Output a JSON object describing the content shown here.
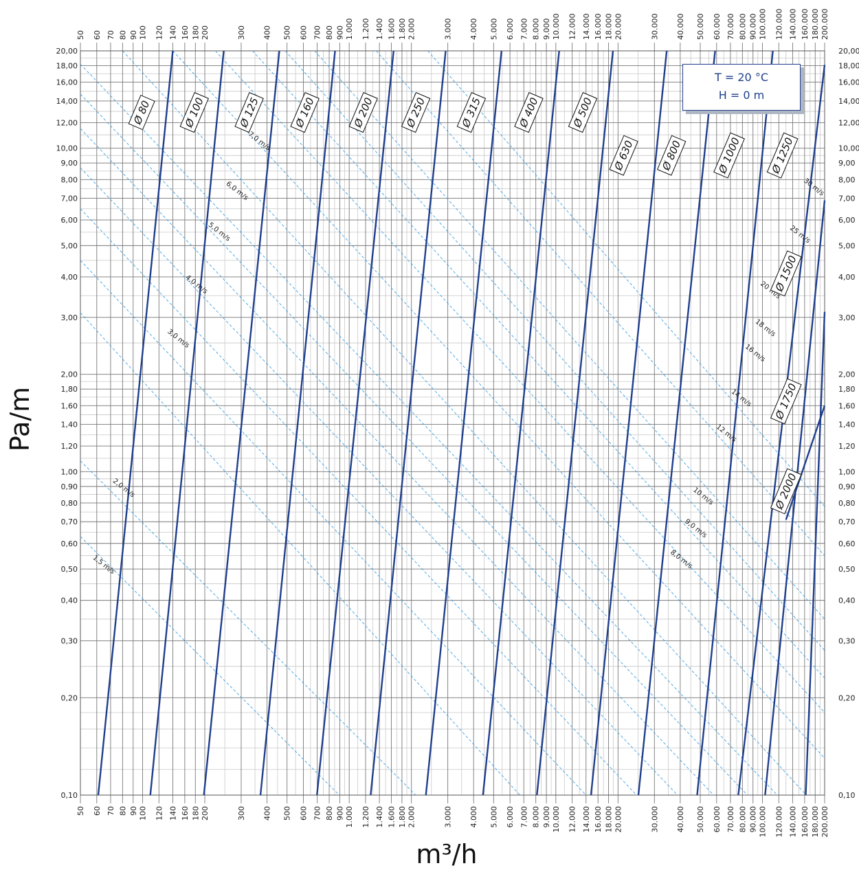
{
  "chart_data": {
    "type": "line",
    "title": "",
    "xlabel": "m³/h",
    "ylabel": "Pa/m",
    "x_scale": "log",
    "y_scale": "log",
    "xlim": [
      50,
      200000
    ],
    "ylim": [
      0.1,
      20
    ],
    "grid": true,
    "x_ticks": [
      50,
      60,
      70,
      80,
      90,
      100,
      120,
      140,
      160,
      180,
      200,
      300,
      400,
      500,
      600,
      700,
      800,
      900,
      1000,
      1200,
      1400,
      1600,
      1800,
      2000,
      3000,
      4000,
      5000,
      6000,
      7000,
      8000,
      9000,
      10000,
      12000,
      14000,
      16000,
      18000,
      20000,
      30000,
      40000,
      50000,
      60000,
      70000,
      80000,
      90000,
      100000,
      120000,
      140000,
      160000,
      180000,
      200000
    ],
    "x_tick_labels": [
      "50",
      "60",
      "70",
      "80",
      "90",
      "100",
      "120",
      "140",
      "160",
      "180",
      "200",
      "300",
      "400",
      "500",
      "600",
      "700",
      "800",
      "900",
      "1.000",
      "1.200",
      "1.400",
      "1.600",
      "1.800",
      "2.000",
      "3.000",
      "4.000",
      "5.000",
      "6.000",
      "7.000",
      "8.000",
      "9.000",
      "10.000",
      "12.000",
      "14.000",
      "16.000",
      "18.000",
      "20.000",
      "30.000",
      "40.000",
      "50.000",
      "60.000",
      "70.000",
      "80.000",
      "90.000",
      "100.000",
      "120.000",
      "140.000",
      "160.000",
      "180.000",
      "200.000"
    ],
    "y_ticks": [
      0.1,
      0.2,
      0.3,
      0.4,
      0.5,
      0.6,
      0.7,
      0.8,
      0.9,
      1,
      1.2,
      1.4,
      1.6,
      1.8,
      2,
      3,
      4,
      5,
      6,
      7,
      8,
      9,
      10,
      12,
      14,
      16,
      18,
      20
    ],
    "y_tick_labels": [
      "0,10",
      "0,20",
      "0,30",
      "0,40",
      "0,50",
      "0,60",
      "0,70",
      "0,80",
      "0,90",
      "1,00",
      "1,20",
      "1,40",
      "1,60",
      "1,80",
      "2,00",
      "3,00",
      "4,00",
      "5,00",
      "6,00",
      "7,00",
      "8,00",
      "9,00",
      "10,00",
      "12,00",
      "14,00",
      "16,00",
      "18,00",
      "20,00"
    ],
    "diameter_series": [
      {
        "name": "Ø 80",
        "points": [
          [
            61,
            0.1
          ],
          [
            140,
            20
          ]
        ]
      },
      {
        "name": "Ø 100",
        "points": [
          [
            109,
            0.1
          ],
          [
            247,
            20
          ]
        ]
      },
      {
        "name": "Ø 125",
        "points": [
          [
            198,
            0.1
          ],
          [
            459,
            20
          ]
        ]
      },
      {
        "name": "Ø 160",
        "points": [
          [
            372,
            0.1
          ],
          [
            854,
            20
          ]
        ]
      },
      {
        "name": "Ø 200",
        "points": [
          [
            698,
            0.1
          ],
          [
            1640,
            20
          ]
        ]
      },
      {
        "name": "Ø 250",
        "points": [
          [
            1270,
            0.1
          ],
          [
            2930,
            20
          ]
        ]
      },
      {
        "name": "Ø 315",
        "points": [
          [
            2350,
            0.1
          ],
          [
            5460,
            20
          ]
        ]
      },
      {
        "name": "Ø 400",
        "points": [
          [
            4440,
            0.1
          ],
          [
            10380,
            20
          ]
        ]
      },
      {
        "name": "Ø 500",
        "points": [
          [
            8100,
            0.1
          ],
          [
            18900,
            20
          ]
        ]
      },
      {
        "name": "Ø 630",
        "points": [
          [
            14800,
            0.1
          ],
          [
            34400,
            20
          ]
        ]
      },
      {
        "name": "Ø 800",
        "points": [
          [
            25100,
            0.1
          ],
          [
            59000,
            20
          ]
        ]
      },
      {
        "name": "Ø 1000",
        "points": [
          [
            48300,
            0.1
          ],
          [
            112300,
            20
          ]
        ]
      },
      {
        "name": "Ø 1250",
        "points": [
          [
            76400,
            0.1
          ],
          [
            200000,
            18.1
          ]
        ]
      },
      {
        "name": "Ø 1500",
        "points": [
          [
            103000,
            0.1
          ],
          [
            200000,
            6.9
          ]
        ]
      },
      {
        "name": "Ø 1750",
        "points": [
          [
            162000,
            0.1
          ],
          [
            200000,
            3.12
          ]
        ]
      },
      {
        "name": "Ø 2000",
        "points": [
          [
            200000,
            1.6
          ],
          [
            130000,
            0.71
          ]
        ]
      }
    ],
    "velocity_series": [
      {
        "name": "1,5 m/s",
        "points": [
          [
            50,
            0.63
          ],
          [
            895,
            0.1
          ]
        ]
      },
      {
        "name": "2,0 m/s",
        "points": [
          [
            50,
            1.08
          ],
          [
            2100,
            0.1
          ]
        ]
      },
      {
        "name": "3,0 m/s",
        "points": [
          [
            50,
            3.1
          ],
          [
            6700,
            0.1
          ]
        ]
      },
      {
        "name": "4,0 m/s",
        "points": [
          [
            50,
            4.5
          ],
          [
            14000,
            0.1
          ]
        ]
      },
      {
        "name": "5,0 m/s",
        "points": [
          [
            50,
            6.5
          ],
          [
            24600,
            0.1
          ]
        ]
      },
      {
        "name": "6,0 m/s",
        "points": [
          [
            50,
            8.7
          ],
          [
            38800,
            0.1
          ]
        ]
      },
      {
        "name": "7,0 m/s",
        "points": [
          [
            50,
            11.5
          ],
          [
            58000,
            0.1
          ]
        ]
      },
      {
        "name": "8,0 m/s",
        "points": [
          [
            50,
            14.7
          ],
          [
            84600,
            0.1
          ]
        ]
      },
      {
        "name": "9,0 m/s",
        "points": [
          [
            50,
            18.2
          ],
          [
            118000,
            0.1
          ]
        ]
      },
      {
        "name": "10 m/s",
        "points": [
          [
            80,
            20
          ],
          [
            163000,
            0.1
          ]
        ]
      },
      {
        "name": "12 m/s",
        "points": [
          [
            140,
            20
          ],
          [
            200000,
            0.13
          ]
        ]
      },
      {
        "name": "14 m/s",
        "points": [
          [
            225,
            20
          ],
          [
            200000,
            0.18
          ]
        ]
      },
      {
        "name": "16 m/s",
        "points": [
          [
            340,
            20
          ],
          [
            200000,
            0.23
          ]
        ]
      },
      {
        "name": "18 m/s",
        "points": [
          [
            490,
            20
          ],
          [
            200000,
            0.28
          ]
        ]
      },
      {
        "name": "20 m/s",
        "points": [
          [
            680,
            20
          ],
          [
            200000,
            0.35
          ]
        ]
      },
      {
        "name": "25 m/s",
        "points": [
          [
            1350,
            20
          ],
          [
            200000,
            0.55
          ]
        ]
      },
      {
        "name": "30 m/s",
        "points": [
          [
            2400,
            20
          ],
          [
            200000,
            0.78
          ]
        ]
      }
    ],
    "diameter_labels": [
      {
        "text": "Ø 80",
        "x": 99,
        "y": 12.9
      },
      {
        "text": "Ø 100",
        "x": 178,
        "y": 12.9
      },
      {
        "text": "Ø 125",
        "x": 328,
        "y": 12.9
      },
      {
        "text": "Ø 160",
        "x": 610,
        "y": 12.9
      },
      {
        "text": "Ø 200",
        "x": 1170,
        "y": 12.9
      },
      {
        "text": "Ø 250",
        "x": 2100,
        "y": 12.9
      },
      {
        "text": "Ø 315",
        "x": 3900,
        "y": 12.9
      },
      {
        "text": "Ø 400",
        "x": 7400,
        "y": 12.9
      },
      {
        "text": "Ø 500",
        "x": 13500,
        "y": 12.9
      },
      {
        "text": "Ø 630",
        "x": 21300,
        "y": 9.5
      },
      {
        "text": "Ø 800",
        "x": 36300,
        "y": 9.5
      },
      {
        "text": "Ø 1000",
        "x": 69000,
        "y": 9.5
      },
      {
        "text": "Ø 1250",
        "x": 125000,
        "y": 9.5
      },
      {
        "text": "Ø 1500",
        "x": 130000,
        "y": 4.1
      },
      {
        "text": "Ø 1750",
        "x": 130000,
        "y": 1.65
      },
      {
        "text": "Ø 2000",
        "x": 130000,
        "y": 0.87
      }
    ],
    "velocity_labels": [
      {
        "text": "1,5 m/s",
        "x": 64,
        "y": 0.51
      },
      {
        "text": "2,0 m/s",
        "x": 80,
        "y": 0.88
      },
      {
        "text": "3,0 m/s",
        "x": 147,
        "y": 2.55
      },
      {
        "text": "4,0 m/s",
        "x": 180,
        "y": 3.75
      },
      {
        "text": "5,0 m/s",
        "x": 232,
        "y": 5.45
      },
      {
        "text": "6,0 m/s",
        "x": 283,
        "y": 7.3
      },
      {
        "text": "7,0 m/s",
        "x": 362,
        "y": 10.4
      },
      {
        "text": "8,0 m/s",
        "x": 40000,
        "y": 0.53
      },
      {
        "text": "9,0 m/s",
        "x": 47000,
        "y": 0.66
      },
      {
        "text": "10 m/s",
        "x": 51000,
        "y": 0.83
      },
      {
        "text": "12 m/s",
        "x": 66000,
        "y": 1.3
      },
      {
        "text": "14 m/s",
        "x": 78000,
        "y": 1.67
      },
      {
        "text": "16 m/s",
        "x": 91000,
        "y": 2.3
      },
      {
        "text": "18 m/s",
        "x": 102000,
        "y": 2.75
      },
      {
        "text": "20 m/s",
        "x": 108000,
        "y": 3.6
      },
      {
        "text": "25 m/s",
        "x": 150000,
        "y": 5.35
      },
      {
        "text": "30 m/s",
        "x": 175000,
        "y": 7.5
      }
    ]
  },
  "conditions": {
    "line1": "T = 20 °C",
    "line2": "H = 0 m"
  },
  "colors": {
    "diameter_line": "#1f3e8c",
    "velocity_line": "#3ba0e6",
    "grid_major": "#777777",
    "grid_minor": "#c8c8c8",
    "box_border": "#1f3e8c"
  }
}
